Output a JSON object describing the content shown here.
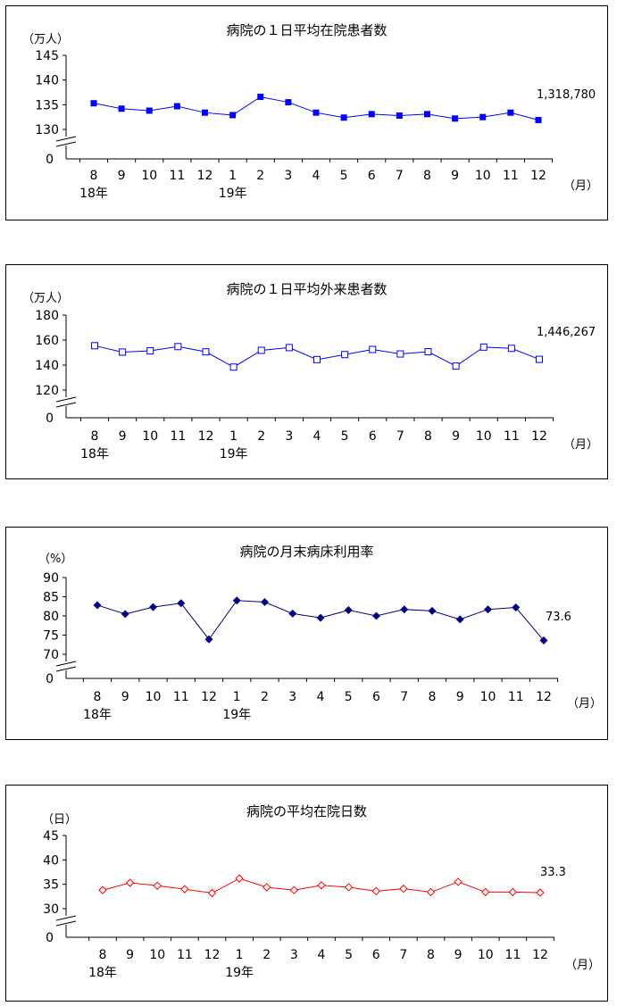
{
  "charts": [
    {
      "title": "病院の１日平均在院患者数",
      "unit": "（万人）",
      "callout": "1,318,780",
      "color": "#0000ff",
      "marker": "square-filled"
    },
    {
      "title": "病院の１日平均外来患者数",
      "unit": "（万人）",
      "callout": "1,446,267",
      "color": "#0000ff",
      "marker": "square-open"
    },
    {
      "title": "病院の月末病床利用率",
      "unit": "（%）",
      "callout": "73.6",
      "color": "#000080",
      "marker": "diamond-filled"
    },
    {
      "title": "病院の平均在院日数",
      "unit": "（日）",
      "callout": "33.3",
      "color": "#ff0000",
      "marker": "diamond-open"
    }
  ],
  "x_unit": "（月）",
  "chart_data": [
    {
      "type": "line",
      "title": "病院の１日平均在院患者数",
      "ylabel": "（万人）",
      "categories": [
        "8",
        "9",
        "10",
        "11",
        "12",
        "1",
        "2",
        "3",
        "4",
        "5",
        "6",
        "7",
        "8",
        "9",
        "10",
        "11",
        "12"
      ],
      "year_labels": [
        {
          "index": 0,
          "label": "18年"
        },
        {
          "index": 5,
          "label": "19年"
        }
      ],
      "yticks": [
        130,
        135,
        140,
        145
      ],
      "axis_break_zero": "0",
      "ylim": [
        130,
        145
      ],
      "series": [
        {
          "values": [
            135.3,
            134.2,
            133.8,
            134.7,
            133.4,
            132.9,
            136.6,
            135.5,
            133.4,
            132.4,
            133.1,
            132.8,
            133.1,
            132.2,
            132.5,
            133.4,
            131.9
          ]
        }
      ],
      "grid": false
    },
    {
      "type": "line",
      "title": "病院の１日平均外来患者数",
      "ylabel": "（万人）",
      "categories": [
        "8",
        "9",
        "10",
        "11",
        "12",
        "1",
        "2",
        "3",
        "4",
        "5",
        "6",
        "7",
        "8",
        "9",
        "10",
        "11",
        "12"
      ],
      "year_labels": [
        {
          "index": 0,
          "label": "18年"
        },
        {
          "index": 5,
          "label": "19年"
        }
      ],
      "yticks": [
        120,
        140,
        160,
        180
      ],
      "axis_break_zero": "0",
      "ylim": [
        120,
        180
      ],
      "series": [
        {
          "values": [
            155.5,
            150.4,
            151.4,
            154.8,
            150.6,
            138.4,
            151.8,
            154.0,
            144.4,
            148.4,
            152.5,
            148.9,
            150.7,
            139.2,
            154.4,
            153.4,
            144.6
          ]
        }
      ],
      "grid": false
    },
    {
      "type": "line",
      "title": "病院の月末病床利用率",
      "ylabel": "（%）",
      "categories": [
        "8",
        "9",
        "10",
        "11",
        "12",
        "1",
        "2",
        "3",
        "4",
        "5",
        "6",
        "7",
        "8",
        "9",
        "10",
        "11",
        "12"
      ],
      "year_labels": [
        {
          "index": 0,
          "label": "18年"
        },
        {
          "index": 5,
          "label": "19年"
        }
      ],
      "yticks": [
        70,
        75,
        80,
        85,
        90
      ],
      "axis_break_zero": "0",
      "ylim": [
        70,
        90
      ],
      "series": [
        {
          "values": [
            82.8,
            80.5,
            82.3,
            83.3,
            73.9,
            84.0,
            83.6,
            80.6,
            79.5,
            81.5,
            80.0,
            81.7,
            81.3,
            79.1,
            81.7,
            82.2,
            73.6
          ]
        }
      ],
      "grid": false
    },
    {
      "type": "line",
      "title": "病院の平均在院日数",
      "ylabel": "（日）",
      "categories": [
        "8",
        "9",
        "10",
        "11",
        "12",
        "1",
        "2",
        "3",
        "4",
        "5",
        "6",
        "7",
        "8",
        "9",
        "10",
        "11",
        "12"
      ],
      "year_labels": [
        {
          "index": 0,
          "label": "18年"
        },
        {
          "index": 5,
          "label": "19年"
        }
      ],
      "yticks": [
        30,
        35,
        40,
        45
      ],
      "axis_break_zero": "0",
      "ylim": [
        30,
        45
      ],
      "series": [
        {
          "values": [
            33.8,
            35.3,
            34.7,
            34.0,
            33.2,
            36.2,
            34.4,
            33.8,
            34.8,
            34.4,
            33.6,
            34.1,
            33.4,
            35.5,
            33.4,
            33.4,
            33.3
          ]
        }
      ],
      "grid": false
    }
  ]
}
